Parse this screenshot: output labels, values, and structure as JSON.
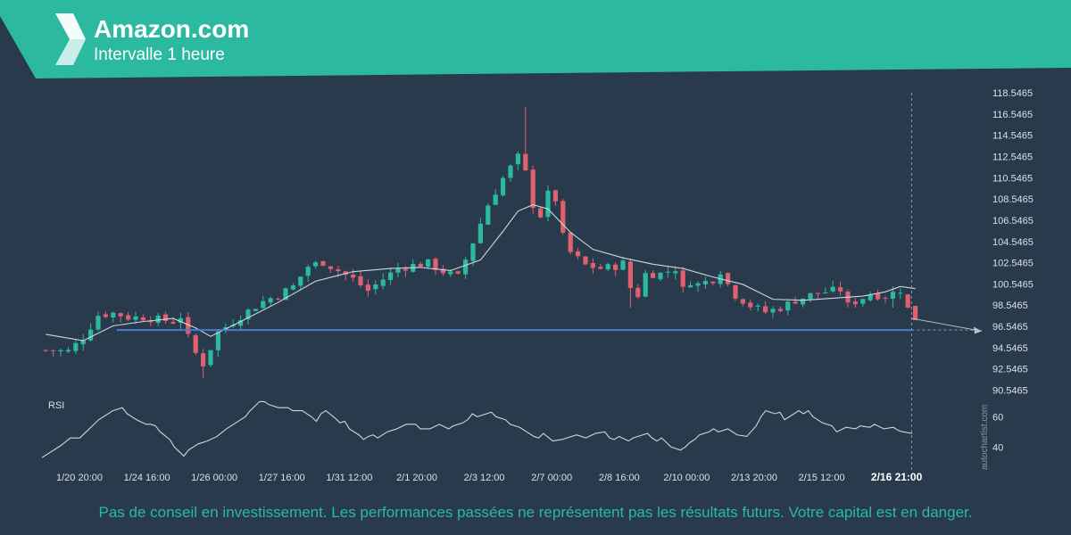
{
  "header": {
    "title": "Amazon.com",
    "subtitle": "Intervalle 1 heure",
    "accent_color": "#2bb9a0",
    "logo_icon": "autochartist-logo-icon"
  },
  "disclaimer": "Pas de conseil en investissement. Les performances passées ne représentent pas les résultats futurs. Votre capital est en danger.",
  "watermark": "autochartist.com",
  "chart_data": {
    "type": "candlestick",
    "background_color": "#283a4b",
    "up_color": "#2bb9a0",
    "down_color": "#e0606f",
    "y_ticks": [
      "118.5465",
      "116.5465",
      "114.5465",
      "112.5465",
      "110.5465",
      "108.5465",
      "106.5465",
      "104.5465",
      "102.5465",
      "100.5465",
      "98.5465",
      "96.5465",
      "94.5465",
      "92.5465",
      "90.5465"
    ],
    "ylim": [
      90.5465,
      118.5465
    ],
    "x_ticks": [
      "1/20 20:00",
      "1/24 16:00",
      "1/26 00:00",
      "1/27 16:00",
      "1/31 12:00",
      "2/1 20:00",
      "2/3 12:00",
      "2/7 00:00",
      "2/8 16:00",
      "2/10 00:00",
      "2/13 20:00",
      "2/15 12:00",
      "2/16 21:00"
    ],
    "x_tick_index": [
      5,
      14,
      23,
      32,
      41,
      50,
      59,
      68,
      77,
      86,
      95,
      104,
      114
    ],
    "bar_count": 116,
    "close_path": [
      [
        0,
        94.3
      ],
      [
        3,
        94.2
      ],
      [
        5,
        95.5
      ],
      [
        7,
        97.6
      ],
      [
        9,
        97.8
      ],
      [
        11,
        97.4
      ],
      [
        13,
        97.4
      ],
      [
        15,
        97.2
      ],
      [
        17,
        97.0
      ],
      [
        18,
        97.5
      ],
      [
        19,
        95.5
      ],
      [
        20,
        94.0
      ],
      [
        21,
        93.0
      ],
      [
        22,
        94.5
      ],
      [
        23,
        96.0
      ],
      [
        25,
        97.0
      ],
      [
        27,
        98.0
      ],
      [
        29,
        98.9
      ],
      [
        31,
        99.5
      ],
      [
        33,
        100.3
      ],
      [
        35,
        102.2
      ],
      [
        37,
        102.6
      ],
      [
        39,
        101.8
      ],
      [
        41,
        101.0
      ],
      [
        43,
        99.9
      ],
      [
        45,
        101.0
      ],
      [
        47,
        102.0
      ],
      [
        49,
        102.3
      ],
      [
        51,
        102.5
      ],
      [
        53,
        101.7
      ],
      [
        55,
        101.2
      ],
      [
        57,
        104.5
      ],
      [
        59,
        108.0
      ],
      [
        61,
        110.5
      ],
      [
        63,
        112.5
      ],
      [
        64,
        111.0
      ],
      [
        65,
        108.0
      ],
      [
        66,
        107.0
      ],
      [
        67,
        109.0
      ],
      [
        68,
        108.5
      ],
      [
        69,
        105.0
      ],
      [
        70,
        103.5
      ],
      [
        72,
        102.3
      ],
      [
        74,
        102.0
      ],
      [
        76,
        102.2
      ],
      [
        77,
        102.5
      ],
      [
        78,
        100.2
      ],
      [
        79,
        99.5
      ],
      [
        80,
        101.5
      ],
      [
        82,
        101.5
      ],
      [
        84,
        102.0
      ],
      [
        85,
        100.0
      ],
      [
        86,
        100.8
      ],
      [
        87,
        100.5
      ],
      [
        89,
        101.0
      ],
      [
        90,
        101.8
      ],
      [
        91,
        100.5
      ],
      [
        92,
        99.5
      ],
      [
        94,
        98.5
      ],
      [
        96,
        97.9
      ],
      [
        98,
        98.3
      ],
      [
        100,
        99.0
      ],
      [
        102,
        99.5
      ],
      [
        104,
        99.8
      ],
      [
        106,
        100.0
      ],
      [
        107,
        98.5
      ],
      [
        108,
        98.9
      ],
      [
        110,
        99.6
      ],
      [
        112,
        99.4
      ],
      [
        114,
        100.0
      ],
      [
        115,
        98.2
      ],
      [
        116,
        97.3
      ]
    ],
    "extremes": [
      [
        21,
        91.7
      ],
      [
        56,
        101.0
      ],
      [
        64,
        117.2
      ],
      [
        78,
        98.3
      ],
      [
        113,
        98.3
      ]
    ],
    "ma_path": [
      [
        0,
        95.8
      ],
      [
        5,
        95.2
      ],
      [
        9,
        96.6
      ],
      [
        13,
        97.0
      ],
      [
        17,
        97.3
      ],
      [
        20,
        96.4
      ],
      [
        22,
        95.6
      ],
      [
        26,
        97.0
      ],
      [
        31,
        98.8
      ],
      [
        36,
        100.8
      ],
      [
        41,
        101.7
      ],
      [
        46,
        102.0
      ],
      [
        50,
        102.1
      ],
      [
        54,
        101.8
      ],
      [
        58,
        102.8
      ],
      [
        61,
        105.5
      ],
      [
        63,
        107.4
      ],
      [
        65,
        108.0
      ],
      [
        67,
        107.6
      ],
      [
        70,
        105.4
      ],
      [
        73,
        103.8
      ],
      [
        77,
        103.0
      ],
      [
        81,
        102.4
      ],
      [
        85,
        102.0
      ],
      [
        89,
        101.2
      ],
      [
        93,
        100.5
      ],
      [
        97,
        99.1
      ],
      [
        101,
        99.0
      ],
      [
        105,
        99.2
      ],
      [
        109,
        99.4
      ],
      [
        112,
        99.8
      ],
      [
        114,
        100.3
      ],
      [
        116,
        100.1
      ]
    ],
    "support_level": 96.2,
    "projection": [
      [
        116,
        97.3
      ],
      [
        127,
        96.1
      ]
    ],
    "current_bar_index": 116,
    "rsi": {
      "label": "RSI",
      "ticks": [
        "60",
        "40"
      ],
      "ylim": [
        29,
        72
      ],
      "path": [
        [
          0,
          33
        ],
        [
          2,
          37
        ],
        [
          4,
          41
        ],
        [
          6,
          46
        ],
        [
          8,
          46
        ],
        [
          9,
          49
        ],
        [
          10,
          52
        ],
        [
          11,
          55
        ],
        [
          12,
          58
        ],
        [
          13,
          60
        ],
        [
          15,
          64
        ],
        [
          17,
          66
        ],
        [
          18,
          62
        ],
        [
          20,
          58
        ],
        [
          22,
          55
        ],
        [
          23,
          55
        ],
        [
          24,
          54
        ],
        [
          25,
          50
        ],
        [
          27,
          45
        ],
        [
          28,
          40
        ],
        [
          29,
          37
        ],
        [
          30,
          34
        ],
        [
          31,
          38
        ],
        [
          33,
          42
        ],
        [
          35,
          44
        ],
        [
          37,
          47
        ],
        [
          39,
          52
        ],
        [
          41,
          56
        ],
        [
          43,
          60
        ],
        [
          44,
          64
        ],
        [
          46,
          70
        ],
        [
          47,
          70
        ],
        [
          48,
          68
        ],
        [
          50,
          66
        ],
        [
          52,
          66
        ],
        [
          53,
          64
        ],
        [
          55,
          64
        ],
        [
          57,
          60
        ],
        [
          58,
          57
        ],
        [
          59,
          62
        ],
        [
          60,
          64
        ],
        [
          62,
          59
        ],
        [
          63,
          56
        ],
        [
          64,
          57
        ],
        [
          65,
          52
        ],
        [
          67,
          48
        ],
        [
          68,
          45
        ],
        [
          69,
          47
        ],
        [
          70,
          48
        ],
        [
          71,
          46
        ],
        [
          73,
          50
        ],
        [
          75,
          52
        ],
        [
          77,
          55
        ],
        [
          79,
          55
        ],
        [
          80,
          52
        ],
        [
          82,
          52
        ],
        [
          84,
          55
        ],
        [
          86,
          52
        ],
        [
          87,
          54
        ],
        [
          89,
          56
        ],
        [
          90,
          58
        ],
        [
          91,
          62
        ],
        [
          92,
          60
        ],
        [
          94,
          62
        ],
        [
          95,
          63
        ],
        [
          96,
          60
        ],
        [
          98,
          58
        ],
        [
          99,
          55
        ],
        [
          101,
          53
        ],
        [
          103,
          49
        ],
        [
          104,
          47
        ],
        [
          105,
          46
        ],
        [
          106,
          49
        ],
        [
          108,
          44
        ],
        [
          110,
          45
        ],
        [
          111,
          46
        ],
        [
          113,
          48
        ],
        [
          115,
          46
        ],
        [
          117,
          49
        ],
        [
          119,
          50
        ],
        [
          120,
          46
        ],
        [
          121,
          45
        ],
        [
          122,
          47
        ],
        [
          124,
          44
        ],
        [
          125,
          46
        ],
        [
          127,
          48
        ],
        [
          128,
          49
        ],
        [
          129,
          46
        ],
        [
          130,
          44
        ],
        [
          131,
          46
        ],
        [
          133,
          40
        ],
        [
          135,
          38
        ],
        [
          136,
          40
        ],
        [
          137,
          43
        ],
        [
          138,
          45
        ],
        [
          139,
          48
        ],
        [
          141,
          50
        ],
        [
          142,
          52
        ],
        [
          143,
          50
        ],
        [
          145,
          52
        ],
        [
          147,
          48
        ],
        [
          149,
          47
        ],
        [
          151,
          54
        ],
        [
          152,
          60
        ],
        [
          153,
          64
        ],
        [
          155,
          62
        ],
        [
          156,
          63
        ],
        [
          157,
          58
        ],
        [
          158,
          60
        ],
        [
          160,
          64
        ],
        [
          161,
          62
        ],
        [
          162,
          64
        ],
        [
          163,
          60
        ],
        [
          165,
          56
        ],
        [
          167,
          54
        ],
        [
          168,
          50
        ],
        [
          170,
          53
        ],
        [
          172,
          52
        ],
        [
          173,
          54
        ],
        [
          175,
          53
        ],
        [
          176,
          55
        ],
        [
          178,
          52
        ],
        [
          180,
          53
        ],
        [
          181,
          51
        ],
        [
          182,
          50
        ],
        [
          184,
          49
        ]
      ]
    }
  }
}
